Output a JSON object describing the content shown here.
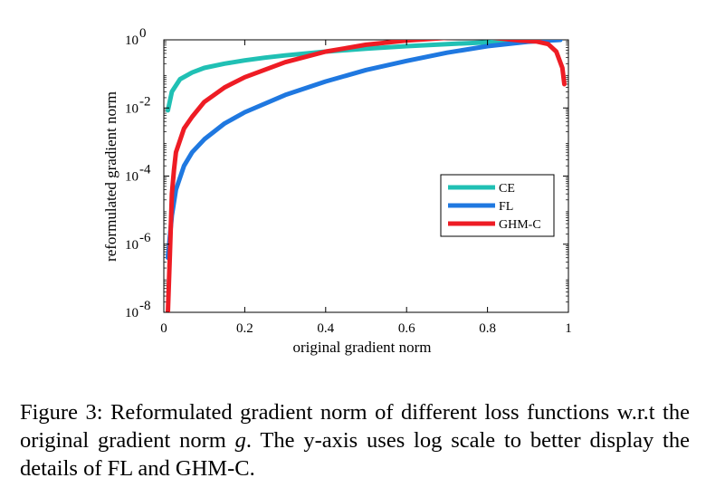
{
  "chart_data": {
    "type": "line",
    "xlabel": "original gradient norm",
    "ylabel": "reformulated gradient norm",
    "xlim": [
      0,
      1
    ],
    "ylim_exponent": [
      -8,
      0
    ],
    "y_scale": "log",
    "x_ticks": [
      "0",
      "0.2",
      "0.4",
      "0.6",
      "0.8",
      "1"
    ],
    "x_tick_values": [
      0,
      0.2,
      0.4,
      0.6,
      0.8,
      1.0
    ],
    "y_ticks": [
      {
        "base": "10",
        "exp": "0",
        "value": 0
      },
      {
        "base": "10",
        "exp": "-2",
        "value": -2
      },
      {
        "base": "10",
        "exp": "-4",
        "value": -4
      },
      {
        "base": "10",
        "exp": "-6",
        "value": -6
      },
      {
        "base": "10",
        "exp": "-8",
        "value": -8
      }
    ],
    "legend_position": "lower-right",
    "grid": false,
    "series": [
      {
        "name": "CE",
        "color": "#20c0b4",
        "x": [
          0.01,
          0.02,
          0.04,
          0.07,
          0.1,
          0.15,
          0.2,
          0.25,
          0.3,
          0.4,
          0.5,
          0.6,
          0.7,
          0.8,
          0.9,
          0.98
        ],
        "y": [
          0.0085,
          0.03,
          0.07,
          0.11,
          0.15,
          0.2,
          0.25,
          0.3,
          0.35,
          0.45,
          0.55,
          0.65,
          0.75,
          0.85,
          0.95,
          1.0
        ]
      },
      {
        "name": "FL",
        "color": "#1f78e0",
        "x": [
          0.01,
          0.02,
          0.03,
          0.05,
          0.07,
          0.1,
          0.15,
          0.2,
          0.3,
          0.4,
          0.5,
          0.6,
          0.7,
          0.8,
          0.9,
          0.98
        ],
        "y": [
          4e-07,
          7e-06,
          4e-05,
          0.0002,
          0.0005,
          0.0012,
          0.0035,
          0.0075,
          0.024,
          0.06,
          0.13,
          0.24,
          0.42,
          0.65,
          0.88,
          1.0
        ]
      },
      {
        "name": "GHM-C",
        "color": "#ee1c24",
        "x": [
          0.01,
          0.015,
          0.02,
          0.025,
          0.03,
          0.05,
          0.07,
          0.1,
          0.15,
          0.2,
          0.3,
          0.4,
          0.5,
          0.6,
          0.7,
          0.8,
          0.88,
          0.92,
          0.95,
          0.97,
          0.985,
          0.99
        ],
        "y": [
          1e-08,
          5e-07,
          3e-05,
          0.00015,
          0.0005,
          0.0025,
          0.0055,
          0.015,
          0.04,
          0.08,
          0.22,
          0.45,
          0.72,
          0.95,
          1.15,
          1.2,
          0.95,
          0.9,
          0.75,
          0.45,
          0.15,
          0.05
        ]
      }
    ]
  },
  "caption": {
    "part1": "Figure 3: Reformulated gradient norm of different loss functions w.r.t the original gradient norm ",
    "var": "g",
    "part2": ". The y-axis uses log scale to better display the details of FL and GHM-C."
  }
}
